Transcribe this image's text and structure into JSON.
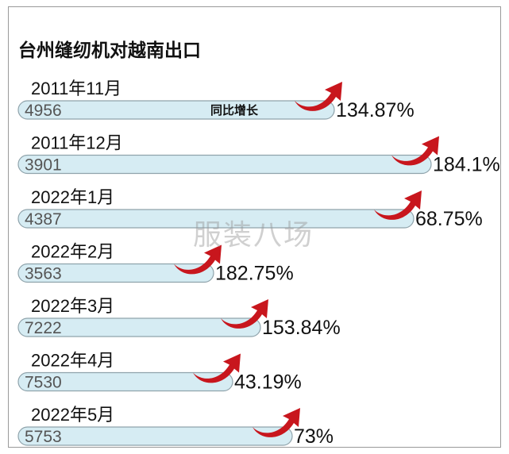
{
  "chart_data": {
    "type": "bar",
    "title": "台州缝纫机对越南出口",
    "categories": [
      "2011年11月",
      "2011年12月",
      "2022年1月",
      "2022年2月",
      "2022年3月",
      "2022年4月",
      "2022年5月"
    ],
    "values": [
      4956,
      3901,
      4387,
      3563,
      7222,
      7530,
      5753
    ],
    "growth_labels": [
      "134.87%",
      "184.1%",
      "68.75%",
      "182.75%",
      "153.84%",
      "43.19%",
      "73%"
    ],
    "growth_values": [
      134.87,
      184.1,
      68.75,
      182.75,
      153.84,
      43.19,
      73
    ],
    "growth_caption": "同比增长",
    "grid": false,
    "legend": "none"
  },
  "watermark": "服装八场",
  "colors": {
    "bar_fill": "#d6ecf3",
    "bar_stroke": "#8fa3ab",
    "arrow": "#c8161d",
    "text": "#111111",
    "value_text": "#555555"
  }
}
